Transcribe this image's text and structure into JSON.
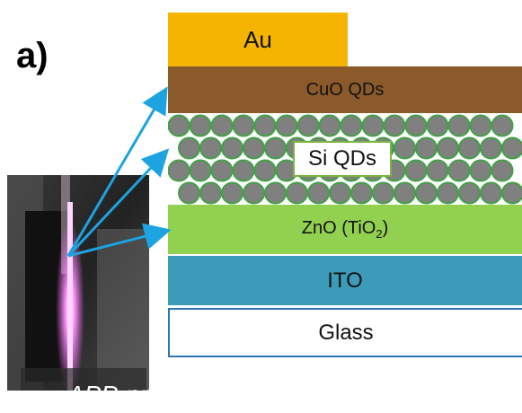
{
  "panel_label": "a)",
  "layers": {
    "au": "Au",
    "cuo": "CuO QDs",
    "si": "Si QDs",
    "zno_main": "ZnO (TiO",
    "zno_sub": "2",
    "zno_close": ")",
    "ito": "ITO",
    "glass": "Glass"
  },
  "photo_caption": "APP-produced",
  "colors": {
    "au": "#f4b400",
    "cuo": "#8b5a2b",
    "si_dots": "#808080",
    "si_dot_outline": "#43a047",
    "zno": "#92d050",
    "ito": "#3b9bb9",
    "glass_border": "#2e75b6",
    "arrows": "#1ca3e0",
    "plasma": "#ff66ff"
  }
}
